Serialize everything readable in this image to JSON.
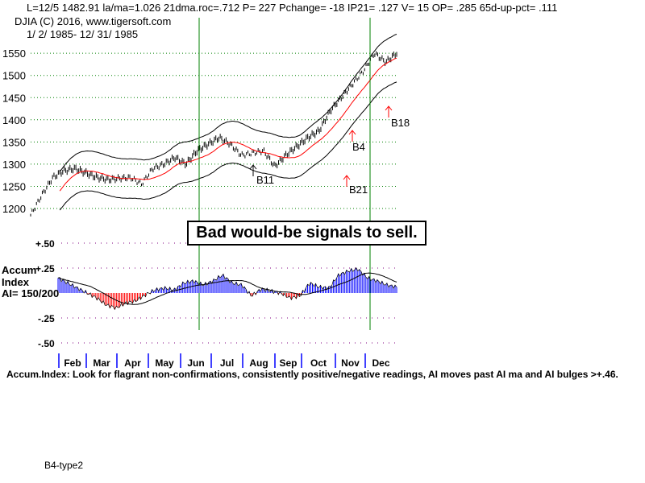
{
  "header": {
    "stats": "L=12/5  1482.91  la/ma=1.026 21dma.roc=.712 P=  227 Pchange= -18 IP21= .127 V= 15 OP= .285 65d-up-pct= .111",
    "symbol_line": "DJIA   (C) 2016, www.tigersoft.com",
    "date_range": "1/ 2/ 1985- 12/ 31/ 1985"
  },
  "annotation": "Bad would-be signals to sell.",
  "indicator_label": {
    "line1": "Accum",
    "line2": "Index",
    "line3": "AI= 150/200"
  },
  "footer": "Accum.Index: Look for flagrant non-confirmations, consistently positive/negative readings, AI moves past AI ma and AI bulges >+.46.",
  "bottom_label": "B4-type2",
  "colors": {
    "price": "#000000",
    "ma": "#ff0000",
    "bands": "#000000",
    "signal_lines": "#008000",
    "ai_pos": "#0000ff",
    "ai_neg": "#ff0000",
    "grid": "#008000",
    "ai_grid": "#800080"
  },
  "chart_data": [
    {
      "type": "line",
      "title": "DJIA 1985",
      "ylim": [
        1180,
        1575
      ],
      "y_ticks": [
        "1550",
        "1500",
        "1450",
        "1400",
        "1350",
        "1300",
        "1250",
        "1200"
      ],
      "x_ticks": [
        "Feb",
        "Mar",
        "Apr",
        "May",
        "Jun",
        "Jul",
        "Aug",
        "Sep",
        "Oct",
        "Nov",
        "Dec"
      ],
      "close": [
        1185,
        1230,
        1270,
        1285,
        1290,
        1280,
        1270,
        1265,
        1268,
        1270,
        1255,
        1290,
        1300,
        1315,
        1300,
        1330,
        1345,
        1360,
        1345,
        1320,
        1325,
        1330,
        1295,
        1320,
        1340,
        1360,
        1375,
        1420,
        1450,
        1480,
        1510,
        1550,
        1530,
        1550
      ],
      "signals": [
        {
          "label": "B11",
          "color": "#000000"
        },
        {
          "label": "B4",
          "color": "#000000"
        },
        {
          "label": "B18",
          "color": "#000000"
        },
        {
          "label": "B21",
          "color": "#000000"
        }
      ]
    },
    {
      "type": "bar",
      "title": "Accum Index",
      "ylim": [
        -0.5,
        0.5
      ],
      "y_ticks": [
        "+.50",
        "+.25",
        "-.25",
        "-.50"
      ],
      "values": [
        0.15,
        0.1,
        0.05,
        0.0,
        -0.05,
        -0.12,
        -0.15,
        -0.1,
        -0.08,
        -0.02,
        0.03,
        0.05,
        0.03,
        0.1,
        0.12,
        0.08,
        0.12,
        0.18,
        0.1,
        0.08,
        -0.03,
        0.04,
        0.02,
        0.0,
        -0.05,
        -0.03,
        0.1,
        0.06,
        0.05,
        0.18,
        0.22,
        0.24,
        0.15,
        0.12,
        0.08,
        0.06
      ]
    }
  ]
}
